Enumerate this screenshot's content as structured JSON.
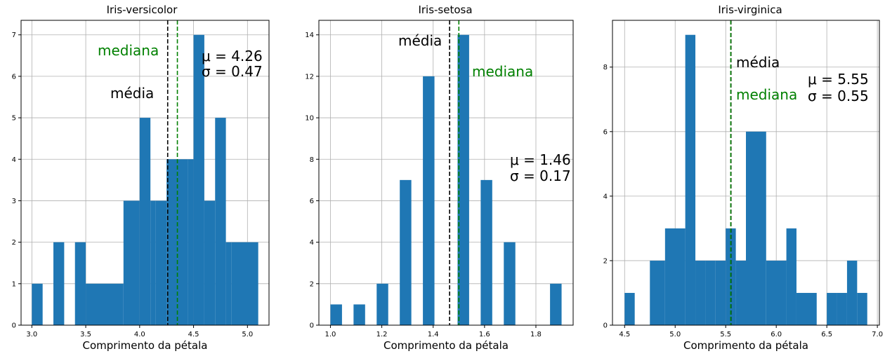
{
  "figure": {
    "bar_color": "#1f77b4",
    "mean_line_color": "#000000",
    "median_line_color": "#008000",
    "grid": true
  },
  "chart_data": [
    {
      "type": "bar",
      "title": "Iris-versicolor",
      "xlabel": "Comprimento da pétala",
      "ylabel": "",
      "xlim": [
        2.9,
        5.2
      ],
      "ylim": [
        0,
        7.35
      ],
      "xticks": [
        "3.0",
        "3.5",
        "4.0",
        "4.5",
        "5.0"
      ],
      "yticks": [
        "0",
        "1",
        "2",
        "3",
        "4",
        "5",
        "6",
        "7"
      ],
      "bins": [
        [
          3.0,
          3.1,
          1
        ],
        [
          3.2,
          3.3,
          2
        ],
        [
          3.4,
          3.5,
          2
        ],
        [
          3.5,
          3.85,
          1
        ],
        [
          3.85,
          4.0,
          3
        ],
        [
          4.0,
          4.1,
          5
        ],
        [
          4.1,
          4.15,
          3
        ],
        [
          4.15,
          4.25,
          3
        ],
        [
          4.25,
          4.35,
          4
        ],
        [
          4.35,
          4.45,
          4
        ],
        [
          4.45,
          4.5,
          4
        ],
        [
          4.5,
          4.6,
          7
        ],
        [
          4.6,
          4.7,
          3
        ],
        [
          4.7,
          4.8,
          5
        ],
        [
          4.8,
          4.85,
          2
        ],
        [
          4.85,
          5.1,
          2
        ]
      ],
      "mean": 4.26,
      "median": 4.35,
      "mean_label": "média",
      "median_label": "mediana",
      "stats": {
        "mu": "μ = 4.26",
        "sigma": "σ = 0.47"
      }
    },
    {
      "type": "bar",
      "title": "Iris-setosa",
      "xlabel": "Comprimento da pétala",
      "ylabel": "",
      "xlim": [
        0.955,
        1.945
      ],
      "ylim": [
        0,
        14.7
      ],
      "xticks": [
        "1.0",
        "1.2",
        "1.4",
        "1.6",
        "1.8"
      ],
      "yticks": [
        "0",
        "2",
        "4",
        "6",
        "8",
        "10",
        "12",
        "14"
      ],
      "bins": [
        [
          1.0,
          1.045,
          1
        ],
        [
          1.09,
          1.135,
          1
        ],
        [
          1.18,
          1.225,
          2
        ],
        [
          1.27,
          1.315,
          7
        ],
        [
          1.36,
          1.405,
          12
        ],
        [
          1.495,
          1.54,
          14
        ],
        [
          1.585,
          1.63,
          7
        ],
        [
          1.675,
          1.72,
          4
        ],
        [
          1.855,
          1.9,
          2
        ]
      ],
      "mean": 1.464,
      "median": 1.5,
      "mean_label": "média",
      "median_label": "mediana",
      "stats": {
        "mu": "μ = 1.46",
        "sigma": "σ = 0.17"
      }
    },
    {
      "type": "bar",
      "title": "Iris-virginica",
      "xlabel": "Comprimento da pétala",
      "ylabel": "",
      "xlim": [
        4.38,
        7.02
      ],
      "ylim": [
        0,
        9.45
      ],
      "xticks": [
        "4.5",
        "5.0",
        "5.5",
        "6.0",
        "6.5",
        "7.0"
      ],
      "yticks": [
        "0",
        "2",
        "4",
        "6",
        "8"
      ],
      "bins": [
        [
          4.5,
          4.6,
          1
        ],
        [
          4.75,
          4.9,
          2
        ],
        [
          4.9,
          5.1,
          3
        ],
        [
          5.1,
          5.2,
          9
        ],
        [
          5.2,
          5.3,
          2
        ],
        [
          5.3,
          5.4,
          2
        ],
        [
          5.4,
          5.5,
          2
        ],
        [
          5.5,
          5.6,
          3
        ],
        [
          5.6,
          5.7,
          2
        ],
        [
          5.7,
          5.9,
          6
        ],
        [
          5.9,
          6.1,
          2
        ],
        [
          6.1,
          6.2,
          3
        ],
        [
          6.2,
          6.4,
          1
        ],
        [
          6.5,
          6.6,
          1
        ],
        [
          6.6,
          6.7,
          1
        ],
        [
          6.7,
          6.8,
          2
        ],
        [
          6.8,
          6.9,
          1
        ]
      ],
      "mean": 5.552,
      "median": 5.55,
      "mean_label": "média",
      "median_label": "mediana",
      "stats": {
        "mu": "μ = 5.55",
        "sigma": "σ = 0.55"
      }
    }
  ]
}
